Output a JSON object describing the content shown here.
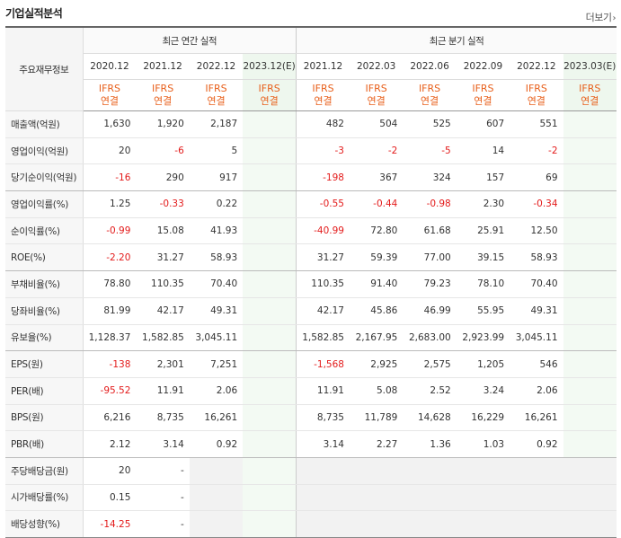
{
  "section_title": "기업실적분석",
  "more_label": "더보기",
  "header": {
    "corner": "주요재무정보",
    "annual_title": "최근 연간 실적",
    "quarter_title": "최근 분기 실적",
    "annual_periods": [
      "2020.12",
      "2021.12",
      "2022.12",
      "2023.12(E)"
    ],
    "quarter_periods": [
      "2021.12",
      "2022.03",
      "2022.06",
      "2022.09",
      "2022.12",
      "2023.03(E)"
    ],
    "ifrs_top": "IFRS",
    "ifrs_bottom": "연결"
  },
  "rows": [
    {
      "label": "매출액(억원)",
      "annual": [
        "1,630",
        "1,920",
        "2,187",
        ""
      ],
      "quarter": [
        "482",
        "504",
        "525",
        "607",
        "551",
        ""
      ]
    },
    {
      "label": "영업이익(억원)",
      "annual": [
        "20",
        "-6",
        "5",
        ""
      ],
      "quarter": [
        "-3",
        "-2",
        "-5",
        "14",
        "-2",
        ""
      ]
    },
    {
      "label": "당기순이익(억원)",
      "annual": [
        "-16",
        "290",
        "917",
        ""
      ],
      "quarter": [
        "-198",
        "367",
        "324",
        "157",
        "69",
        ""
      ]
    },
    {
      "label": "영업이익률(%)",
      "annual": [
        "1.25",
        "-0.33",
        "0.22",
        ""
      ],
      "quarter": [
        "-0.55",
        "-0.44",
        "-0.98",
        "2.30",
        "-0.34",
        ""
      ]
    },
    {
      "label": "순이익률(%)",
      "annual": [
        "-0.99",
        "15.08",
        "41.93",
        ""
      ],
      "quarter": [
        "-40.99",
        "72.80",
        "61.68",
        "25.91",
        "12.50",
        ""
      ]
    },
    {
      "label": "ROE(%)",
      "annual": [
        "-2.20",
        "31.27",
        "58.93",
        ""
      ],
      "quarter": [
        "31.27",
        "59.39",
        "77.00",
        "39.15",
        "58.93",
        ""
      ]
    },
    {
      "label": "부채비율(%)",
      "annual": [
        "78.80",
        "110.35",
        "70.40",
        ""
      ],
      "quarter": [
        "110.35",
        "91.40",
        "79.23",
        "78.10",
        "70.40",
        ""
      ]
    },
    {
      "label": "당좌비율(%)",
      "annual": [
        "81.99",
        "42.17",
        "49.31",
        ""
      ],
      "quarter": [
        "42.17",
        "45.86",
        "46.99",
        "55.95",
        "49.31",
        ""
      ]
    },
    {
      "label": "유보율(%)",
      "annual": [
        "1,128.37",
        "1,582.85",
        "3,045.11",
        ""
      ],
      "quarter": [
        "1,582.85",
        "2,167.95",
        "2,683.00",
        "2,923.99",
        "3,045.11",
        ""
      ]
    },
    {
      "label": "EPS(원)",
      "annual": [
        "-138",
        "2,301",
        "7,251",
        ""
      ],
      "quarter": [
        "-1,568",
        "2,925",
        "2,575",
        "1,205",
        "546",
        ""
      ]
    },
    {
      "label": "PER(배)",
      "annual": [
        "-95.52",
        "11.91",
        "2.06",
        ""
      ],
      "quarter": [
        "11.91",
        "5.08",
        "2.52",
        "3.24",
        "2.06",
        ""
      ]
    },
    {
      "label": "BPS(원)",
      "annual": [
        "6,216",
        "8,735",
        "16,261",
        ""
      ],
      "quarter": [
        "8,735",
        "11,789",
        "14,628",
        "16,229",
        "16,261",
        ""
      ]
    },
    {
      "label": "PBR(배)",
      "annual": [
        "2.12",
        "3.14",
        "0.92",
        ""
      ],
      "quarter": [
        "3.14",
        "2.27",
        "1.36",
        "1.03",
        "0.92",
        ""
      ]
    },
    {
      "label": "주당배당금(원)",
      "annual": [
        "20",
        "-",
        null,
        ""
      ],
      "quarter": [
        null,
        null,
        null,
        null,
        null,
        null
      ]
    },
    {
      "label": "시가배당률(%)",
      "annual": [
        "0.15",
        "-",
        null,
        ""
      ],
      "quarter": [
        null,
        null,
        null,
        null,
        null,
        null
      ]
    },
    {
      "label": "배당성향(%)",
      "annual": [
        "-14.25",
        "-",
        null,
        ""
      ],
      "quarter": [
        null,
        null,
        null,
        null,
        null,
        null
      ]
    }
  ],
  "colors": {
    "negative": "#e31b1b",
    "ifrs": "#e8601c",
    "estimate_bg": "#eef7ee"
  }
}
